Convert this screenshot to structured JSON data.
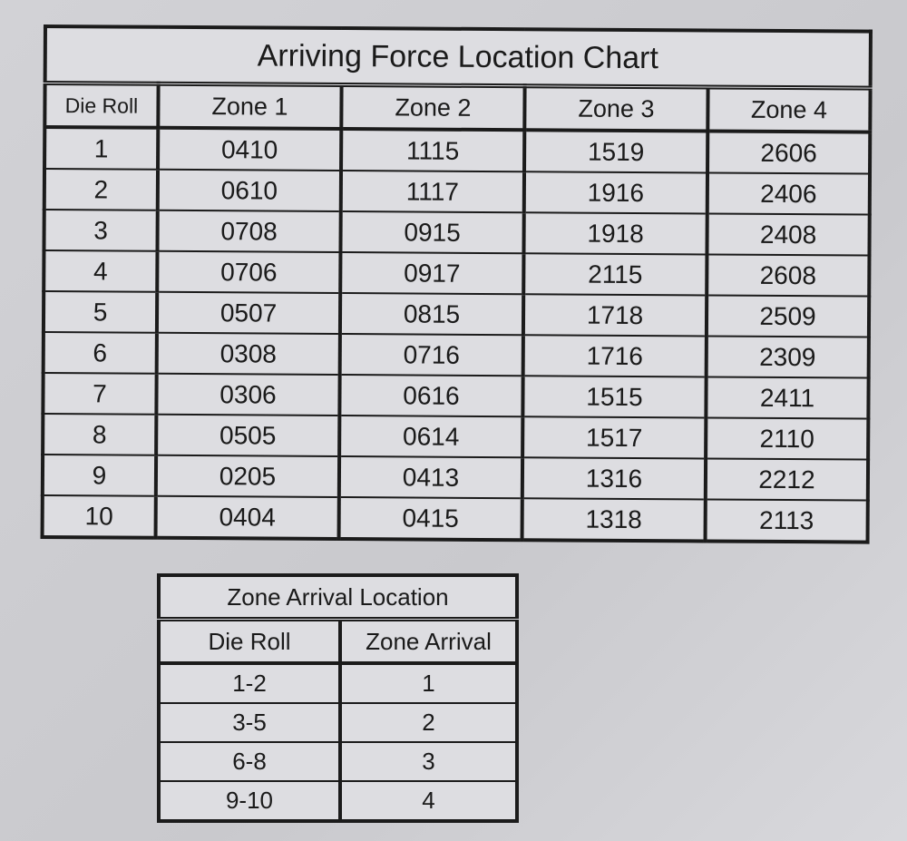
{
  "location_chart": {
    "title": "Arriving Force Location Chart",
    "headers": [
      "Die Roll",
      "Zone 1",
      "Zone 2",
      "Zone 3",
      "Zone 4"
    ],
    "rows": [
      [
        "1",
        "0410",
        "1115",
        "1519",
        "2606"
      ],
      [
        "2",
        "0610",
        "1117",
        "1916",
        "2406"
      ],
      [
        "3",
        "0708",
        "0915",
        "1918",
        "2408"
      ],
      [
        "4",
        "0706",
        "0917",
        "2115",
        "2608"
      ],
      [
        "5",
        "0507",
        "0815",
        "1718",
        "2509"
      ],
      [
        "6",
        "0308",
        "0716",
        "1716",
        "2309"
      ],
      [
        "7",
        "0306",
        "0616",
        "1515",
        "2411"
      ],
      [
        "8",
        "0505",
        "0614",
        "1517",
        "2110"
      ],
      [
        "9",
        "0205",
        "0413",
        "1316",
        "2212"
      ],
      [
        "10",
        "0404",
        "0415",
        "1318",
        "2113"
      ]
    ]
  },
  "zone_arrival": {
    "title": "Zone Arrival Location",
    "headers": [
      "Die Roll",
      "Zone Arrival"
    ],
    "rows": [
      [
        "1-2",
        "1"
      ],
      [
        "3-5",
        "2"
      ],
      [
        "6-8",
        "3"
      ],
      [
        "9-10",
        "4"
      ]
    ]
  }
}
